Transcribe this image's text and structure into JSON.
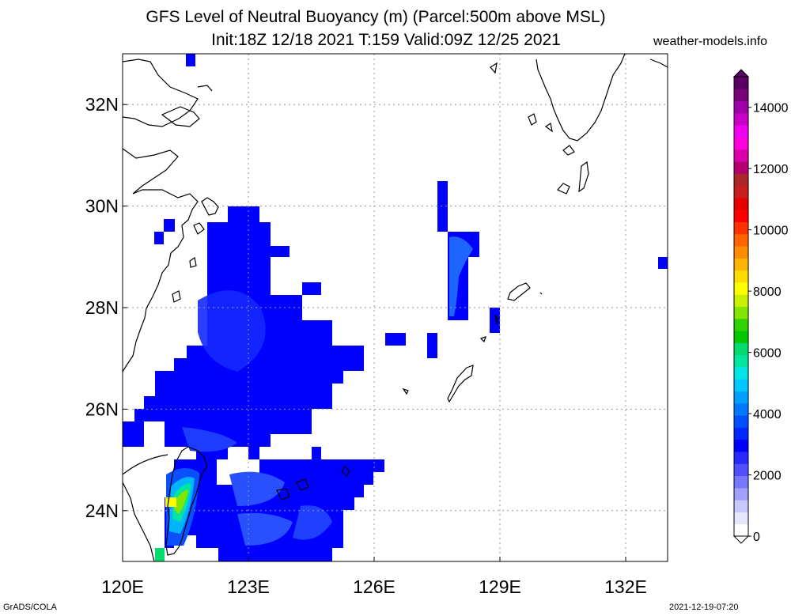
{
  "title_line1": "GFS Level of Neutral Buoyancy (m) (Parcel:500m above MSL)",
  "title_line2": "Init:18Z 12/18 2021 T:159 Valid:09Z 12/25 2021",
  "site": "weather-models.info",
  "footer_left": "GrADS/COLA",
  "footer_right": "2021-12-19-07:20",
  "map": {
    "lon_range": [
      120,
      133
    ],
    "lat_range": [
      23,
      33
    ],
    "lon_ticks": [
      {
        "value": 120,
        "label": "120E"
      },
      {
        "value": 123,
        "label": "123E"
      },
      {
        "value": 126,
        "label": "126E"
      },
      {
        "value": 129,
        "label": "129E"
      },
      {
        "value": 132,
        "label": "132E"
      }
    ],
    "lat_ticks": [
      {
        "value": 24,
        "label": "24N"
      },
      {
        "value": 26,
        "label": "26N"
      },
      {
        "value": 28,
        "label": "28N"
      },
      {
        "value": 30,
        "label": "30N"
      },
      {
        "value": 32,
        "label": "32N"
      }
    ]
  },
  "colorbar": {
    "min": 0,
    "max": 15000,
    "ticks": [
      {
        "value": 0,
        "label": "0"
      },
      {
        "value": 2000,
        "label": "2000"
      },
      {
        "value": 4000,
        "label": "4000"
      },
      {
        "value": 6000,
        "label": "6000"
      },
      {
        "value": 8000,
        "label": "8000"
      },
      {
        "value": 10000,
        "label": "10000"
      },
      {
        "value": 12000,
        "label": "12000"
      },
      {
        "value": 14000,
        "label": "14000"
      }
    ],
    "colors": [
      "#ffffff",
      "#e6e6ff",
      "#c8c8ff",
      "#a0a0ff",
      "#7878ff",
      "#5050ff",
      "#2828ff",
      "#0000ff",
      "#0028ff",
      "#0050ff",
      "#0078ff",
      "#00a0ff",
      "#00c8ff",
      "#00e6e6",
      "#00e6a0",
      "#00dc6e",
      "#00c800",
      "#32d200",
      "#82e600",
      "#c8f000",
      "#ffff00",
      "#ffdc00",
      "#ffb400",
      "#ff8c00",
      "#ff6400",
      "#ff3200",
      "#ff0000",
      "#e60000",
      "#c81e1e",
      "#aa2828",
      "#b4006e",
      "#dc00aa",
      "#ff00dc",
      "#f000f0",
      "#c800c8",
      "#a000aa",
      "#780078",
      "#5a0064"
    ]
  }
}
